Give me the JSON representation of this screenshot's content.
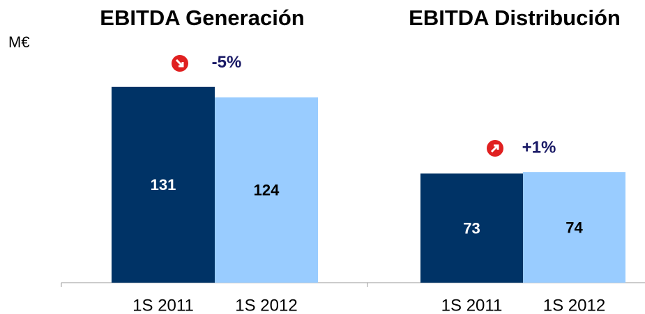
{
  "chart_data": [
    {
      "type": "bar",
      "title": "EBITDA Generación",
      "ylabel": "M€",
      "annotation": "-5%",
      "categories": [
        "1S 2011",
        "1S 2012"
      ],
      "values": [
        131,
        124
      ],
      "colors": [
        "#003366",
        "#99ccff"
      ],
      "ylim": [
        0,
        150
      ]
    },
    {
      "type": "bar",
      "title": "EBITDA Distribución",
      "annotation": "+1%",
      "categories": [
        "1S 2011",
        "1S 2012"
      ],
      "values": [
        73,
        74
      ],
      "colors": [
        "#003366",
        "#99ccff"
      ],
      "ylim": [
        0,
        150
      ]
    }
  ]
}
